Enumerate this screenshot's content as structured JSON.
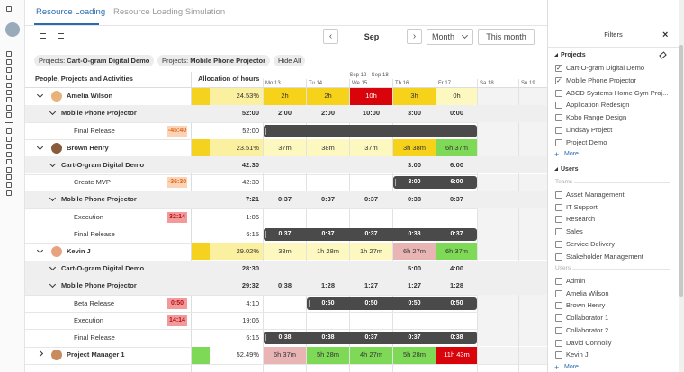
{
  "tabs": [
    "Resource Loading",
    "Resource Loading Simulation"
  ],
  "toolbar": {
    "month": "Sep",
    "view": "Month",
    "today": "This month"
  },
  "chips": [
    {
      "label": "Projects:",
      "value": "Cart-O-gram Digital Demo"
    },
    {
      "label": "Projects:",
      "value": "Mobile Phone Projector"
    }
  ],
  "hide_all": "Hide All",
  "table": {
    "headers": {
      "name": "People, Projects and Activities",
      "allocation": "Allocation of hours",
      "week": "Sep 12 - Sep 18",
      "days": [
        "Mo 13",
        "Tu 14",
        "We 15",
        "Th 16",
        "Fr 17",
        "Sa 18",
        "Su 19"
      ]
    },
    "rows": [
      {
        "level": 0,
        "expanded": true,
        "avatar": "#e8b27a",
        "name": "Amelia Wilson",
        "allocation": "24.53%",
        "alloc_color": "#f5d21f",
        "alloc_bg": "#fbf0a0",
        "days": [
          {
            "text": "2h",
            "color": "#f6d31a"
          },
          {
            "text": "2h",
            "color": "#f6d31a"
          },
          {
            "text": "10h",
            "color": "#d9040b"
          },
          {
            "text": "3h",
            "color": "#f6d31a"
          },
          {
            "text": "0h",
            "color": "#fdf8c0"
          },
          null,
          null
        ]
      },
      {
        "level": 1,
        "name": "Mobile Phone Projector",
        "allocation": "52:00",
        "days": [
          {
            "text": "2:00"
          },
          {
            "text": "2:00"
          },
          {
            "text": "10:00"
          },
          {
            "text": "3:00"
          },
          {
            "text": "0:00"
          },
          null,
          null
        ]
      },
      {
        "level": 2,
        "name": "Final Release",
        "badge": {
          "text": "-45:40",
          "color": "#fcd3b4",
          "text_color": "#e0671c"
        },
        "allocation": "52:00",
        "days": [
          {
            "bar": true
          },
          {
            "bar": true
          },
          {
            "bar": true
          },
          {
            "bar": true
          },
          {
            "bar": true
          },
          null,
          null
        ]
      },
      {
        "level": 0,
        "expanded": true,
        "avatar": "#8a5a3c",
        "name": "Brown Henry",
        "allocation": "23.51%",
        "alloc_color": "#f5d21f",
        "alloc_bg": "#fbf0a0",
        "days": [
          {
            "text": "37m",
            "color": "#fdf8c0"
          },
          {
            "text": "38m",
            "color": "#fdf8c0"
          },
          {
            "text": "37m",
            "color": "#fdf8c0"
          },
          {
            "text": "3h 38m",
            "color": "#f6d31a"
          },
          {
            "text": "6h 37m",
            "color": "#7ed957"
          },
          null,
          null
        ]
      },
      {
        "level": 1,
        "name": "Cart-O-gram Digital Demo",
        "allocation": "42:30",
        "days": [
          null,
          null,
          null,
          {
            "text": "3:00"
          },
          {
            "text": "6:00"
          },
          null,
          null
        ]
      },
      {
        "level": 2,
        "name": "Create MVP",
        "badge": {
          "text": "-36:30",
          "color": "#fcd3b4",
          "text_color": "#e0671c"
        },
        "allocation": "42:30",
        "days": [
          null,
          null,
          null,
          {
            "text": "3:00",
            "bar": true
          },
          {
            "text": "6:00",
            "bar": true
          },
          null,
          null
        ]
      },
      {
        "level": 1,
        "name": "Mobile Phone Projector",
        "allocation": "7:21",
        "days": [
          {
            "text": "0:37"
          },
          {
            "text": "0:37"
          },
          {
            "text": "0:37"
          },
          {
            "text": "0:38"
          },
          {
            "text": "0:37"
          },
          null,
          null
        ]
      },
      {
        "level": 2,
        "name": "Execution",
        "badge": {
          "text": "32:14",
          "color": "#f29a9a",
          "text_color": "#b3121a"
        },
        "allocation": "1:06",
        "days": [
          null,
          null,
          null,
          null,
          null,
          null,
          null
        ]
      },
      {
        "level": 2,
        "name": "Final Release",
        "allocation": "6:15",
        "days": [
          {
            "text": "0:37",
            "bar": true
          },
          {
            "text": "0:37",
            "bar": true
          },
          {
            "text": "0:37",
            "bar": true
          },
          {
            "text": "0:38",
            "bar": true
          },
          {
            "text": "0:37",
            "bar": true
          },
          null,
          null
        ]
      },
      {
        "level": 0,
        "expanded": true,
        "avatar": "#e9a27f",
        "name": "Kevin J",
        "allocation": "29.02%",
        "alloc_color": "#f5d21f",
        "alloc_bg": "#fbf0a0",
        "days": [
          {
            "text": "38m",
            "color": "#fdf8c0"
          },
          {
            "text": "1h 28m",
            "color": "#fdf8c0"
          },
          {
            "text": "1h 27m",
            "color": "#fdf8c0"
          },
          {
            "text": "6h 27m",
            "color": "#e8b4b4"
          },
          {
            "text": "6h 37m",
            "color": "#7ed957"
          },
          null,
          null
        ]
      },
      {
        "level": 1,
        "name": "Cart-O-gram Digital Demo",
        "allocation": "28:30",
        "days": [
          null,
          null,
          null,
          {
            "text": "5:00"
          },
          {
            "text": "4:00"
          },
          null,
          null
        ]
      },
      {
        "level": 1,
        "name": "Mobile Phone Projector",
        "allocation": "29:32",
        "days": [
          {
            "text": "0:38"
          },
          {
            "text": "1:28"
          },
          {
            "text": "1:27"
          },
          {
            "text": "1:27"
          },
          {
            "text": "1:28"
          },
          null,
          null
        ]
      },
      {
        "level": 2,
        "name": "Beta Release",
        "badge": {
          "text": "0:50",
          "color": "#f29a9a",
          "text_color": "#b3121a"
        },
        "allocation": "4:10",
        "days": [
          null,
          {
            "text": "0:50",
            "bar": true
          },
          {
            "text": "0:50",
            "bar": true
          },
          {
            "text": "0:50",
            "bar": true
          },
          {
            "text": "0:50",
            "bar": true
          },
          null,
          null
        ]
      },
      {
        "level": 2,
        "name": "Execution",
        "badge": {
          "text": "14:14",
          "color": "#f29a9a",
          "text_color": "#b3121a"
        },
        "allocation": "19:06",
        "days": [
          null,
          null,
          null,
          null,
          null,
          null,
          null
        ]
      },
      {
        "level": 2,
        "name": "Final Release",
        "allocation": "6:16",
        "days": [
          {
            "text": "0:38",
            "bar": true
          },
          {
            "text": "0:38",
            "bar": true
          },
          {
            "text": "0:37",
            "bar": true
          },
          {
            "text": "0:37",
            "bar": true
          },
          {
            "text": "0:38",
            "bar": true
          },
          null,
          null
        ]
      },
      {
        "level": 0,
        "expanded": false,
        "avatar": "#c98a5e",
        "name": "Project Manager 1",
        "allocation": "52.49%",
        "alloc_color": "#7ed957",
        "alloc_bg": "#ffffff",
        "days": [
          {
            "text": "6h 37m",
            "color": "#e8b4b4"
          },
          {
            "text": "5h 28m",
            "color": "#7ed957"
          },
          {
            "text": "4h 27m",
            "color": "#7ed957"
          },
          {
            "text": "5h 28m",
            "color": "#7ed957"
          },
          {
            "text": "11h 43m",
            "color": "#d9040b"
          },
          null,
          null
        ]
      }
    ]
  },
  "filters": {
    "title": "Filters",
    "projects": {
      "heading": "Projects",
      "items": [
        {
          "label": "Cart-O-gram Digital Demo",
          "checked": true
        },
        {
          "label": "Mobile Phone Projector",
          "checked": true
        },
        {
          "label": "ABCD Systems Home Gym Proj...",
          "checked": false
        },
        {
          "label": "Application Redesign",
          "checked": false
        },
        {
          "label": "Kobo Range Design",
          "checked": false
        },
        {
          "label": "Lindsay Project",
          "checked": false
        },
        {
          "label": "Project Demo",
          "checked": false
        }
      ],
      "more": "More"
    },
    "users": {
      "heading": "Users",
      "teams_label": "Teams",
      "teams": [
        "Asset Management",
        "IT Support",
        "Research",
        "Sales",
        "Service Delivery",
        "Stakeholder Management"
      ],
      "users_label": "Users",
      "users": [
        "Admin",
        "Amelia Wilson",
        "Brown Henry",
        "Collaborator 1",
        "Collaborator 2",
        "David Connolly",
        "Kevin J"
      ],
      "more": "More"
    }
  }
}
